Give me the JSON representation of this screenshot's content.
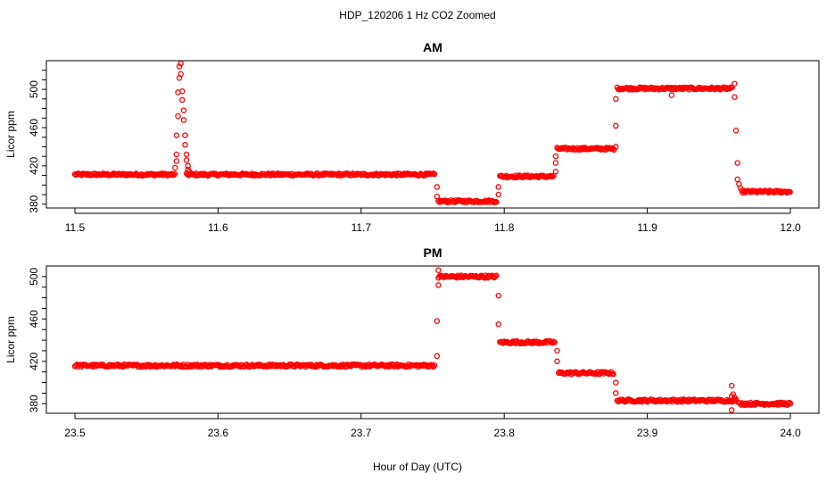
{
  "figure": {
    "title": "HDP_120206  1 Hz CO2 Zoomed",
    "xlabel": "Hour of Day (UTC)"
  },
  "colors": {
    "points": "#ff0000",
    "axes": "#000000",
    "background": "#ffffff"
  },
  "chart_data": [
    {
      "type": "scatter",
      "title": "AM",
      "xlabel": "Hour of Day (UTC)",
      "ylabel": "Licor ppm",
      "xlim": [
        11.5,
        12.0
      ],
      "ylim": [
        376,
        530
      ],
      "x_ticks": [
        "11.5",
        "11.6",
        "11.7",
        "11.8",
        "11.9",
        "12.0"
      ],
      "y_ticks": [
        "380",
        "420",
        "460",
        "500"
      ],
      "y_minor_ticks": [
        380,
        390,
        400,
        410,
        420,
        430,
        440,
        450,
        460,
        470,
        480,
        490,
        500,
        510,
        520
      ],
      "marker": "open-circle",
      "segments": [
        {
          "x_start": 11.5,
          "x_end": 11.57,
          "value": 411
        },
        {
          "x_start": 11.578,
          "x_end": 11.752,
          "value": 411
        },
        {
          "x_start": 11.754,
          "x_end": 11.795,
          "value": 383
        },
        {
          "x_start": 11.797,
          "x_end": 11.835,
          "value": 409
        },
        {
          "x_start": 11.837,
          "x_end": 11.877,
          "value": 438
        },
        {
          "x_start": 11.879,
          "x_end": 11.96,
          "value": 501
        },
        {
          "x_start": 11.966,
          "x_end": 12.0,
          "value": 393
        }
      ],
      "transition_points": [
        [
          11.57,
          418
        ],
        [
          11.571,
          425
        ],
        [
          11.571,
          432
        ],
        [
          11.571,
          452
        ],
        [
          11.572,
          472
        ],
        [
          11.572,
          497
        ],
        [
          11.573,
          512
        ],
        [
          11.573,
          524
        ],
        [
          11.574,
          527
        ],
        [
          11.574,
          516
        ],
        [
          11.575,
          498
        ],
        [
          11.575,
          489
        ],
        [
          11.576,
          478
        ],
        [
          11.576,
          468
        ],
        [
          11.577,
          452
        ],
        [
          11.577,
          442
        ],
        [
          11.578,
          432
        ],
        [
          11.578,
          426
        ],
        [
          11.579,
          420
        ],
        [
          11.579,
          416
        ],
        [
          11.58,
          414
        ],
        [
          11.753,
          398
        ],
        [
          11.753,
          388
        ],
        [
          11.796,
          390
        ],
        [
          11.796,
          398
        ],
        [
          11.836,
          414
        ],
        [
          11.836,
          423
        ],
        [
          11.836,
          430
        ],
        [
          11.878,
          440
        ],
        [
          11.878,
          462
        ],
        [
          11.878,
          490
        ],
        [
          11.917,
          494
        ],
        [
          11.961,
          506
        ],
        [
          11.961,
          492
        ],
        [
          11.962,
          457
        ],
        [
          11.963,
          423
        ],
        [
          11.963,
          406
        ],
        [
          11.964,
          401
        ],
        [
          11.965,
          397
        ]
      ]
    },
    {
      "type": "scatter",
      "title": "PM",
      "xlabel": "Hour of Day (UTC)",
      "ylabel": "Licor ppm",
      "xlim": [
        23.5,
        24.0
      ],
      "ylim": [
        371,
        510
      ],
      "x_ticks": [
        "23.5",
        "23.6",
        "23.7",
        "23.8",
        "23.9",
        "24.0"
      ],
      "y_ticks": [
        "380",
        "420",
        "460",
        "500"
      ],
      "y_minor_ticks": [
        380,
        390,
        400,
        410,
        420,
        430,
        440,
        450,
        460,
        470,
        480,
        490,
        500
      ],
      "marker": "open-circle",
      "segments": [
        {
          "x_start": 23.5,
          "x_end": 23.752,
          "value": 416
        },
        {
          "x_start": 23.754,
          "x_end": 23.795,
          "value": 500
        },
        {
          "x_start": 23.797,
          "x_end": 23.836,
          "value": 438
        },
        {
          "x_start": 23.838,
          "x_end": 23.877,
          "value": 409
        },
        {
          "x_start": 23.879,
          "x_end": 23.962,
          "value": 383
        },
        {
          "x_start": 23.964,
          "x_end": 24.0,
          "value": 380
        }
      ],
      "transition_points": [
        [
          23.753,
          425
        ],
        [
          23.753,
          458
        ],
        [
          23.754,
          492
        ],
        [
          23.754,
          506
        ],
        [
          23.796,
          482
        ],
        [
          23.796,
          455
        ],
        [
          23.837,
          430
        ],
        [
          23.837,
          420
        ],
        [
          23.878,
          400
        ],
        [
          23.878,
          390
        ],
        [
          23.959,
          387
        ],
        [
          23.959,
          397
        ],
        [
          23.959,
          374
        ],
        [
          23.96,
          389
        ],
        [
          23.961,
          386
        ],
        [
          23.962,
          384
        ]
      ]
    }
  ]
}
